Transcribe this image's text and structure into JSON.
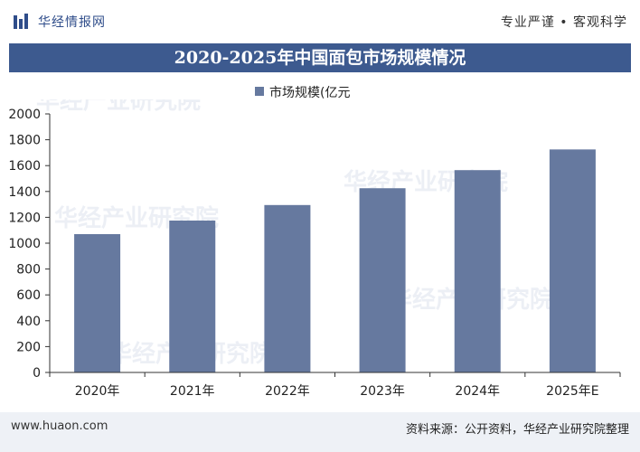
{
  "header": {
    "brand": "华经情报网",
    "slogan": "专业严谨 • 客观科学"
  },
  "watermark": "华经产业研究院",
  "footer": {
    "website": "www.huaon.com",
    "source": "资料来源：公开资料，华经产业研究院整理"
  },
  "colors": {
    "bar": "#66799f",
    "title_bg": "#3d5a8f"
  },
  "chart_data": {
    "type": "bar",
    "title": "2020-2025年中国面包市场规模情况",
    "categories": [
      "2020年",
      "2021年",
      "2022年",
      "2023年",
      "2024年",
      "2025年E"
    ],
    "series": [
      {
        "name": "市场规模(亿元",
        "values": [
          1070,
          1175,
          1295,
          1425,
          1565,
          1725
        ]
      }
    ],
    "xlabel": "",
    "ylabel": "",
    "ylim": [
      0,
      2000
    ],
    "yticks": [
      0,
      200,
      400,
      600,
      800,
      1000,
      1200,
      1400,
      1600,
      1800,
      2000
    ],
    "grid": false,
    "legend": "top-center"
  }
}
